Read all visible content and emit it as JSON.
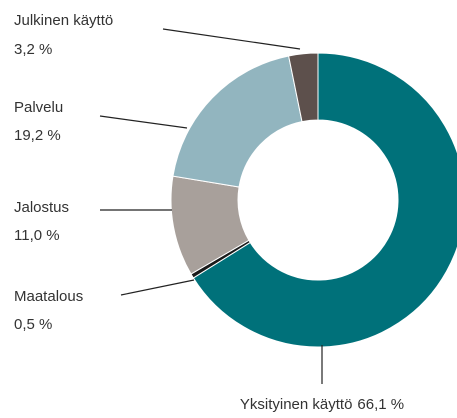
{
  "chart_data": {
    "type": "donut",
    "categories": [
      "Yksityinen käyttö",
      "Maatalous",
      "Jalostus",
      "Palvelu",
      "Julkinen käyttö"
    ],
    "values": [
      66.1,
      0.5,
      11.0,
      19.2,
      3.2
    ],
    "value_labels": [
      "66,1 %",
      "0,5 %",
      "11,0 %",
      "19,2 %",
      "3,2 %"
    ],
    "colors": [
      "#00717a",
      "#1a1a1a",
      "#a8a09b",
      "#92b5bf",
      "#5d504c"
    ]
  }
}
